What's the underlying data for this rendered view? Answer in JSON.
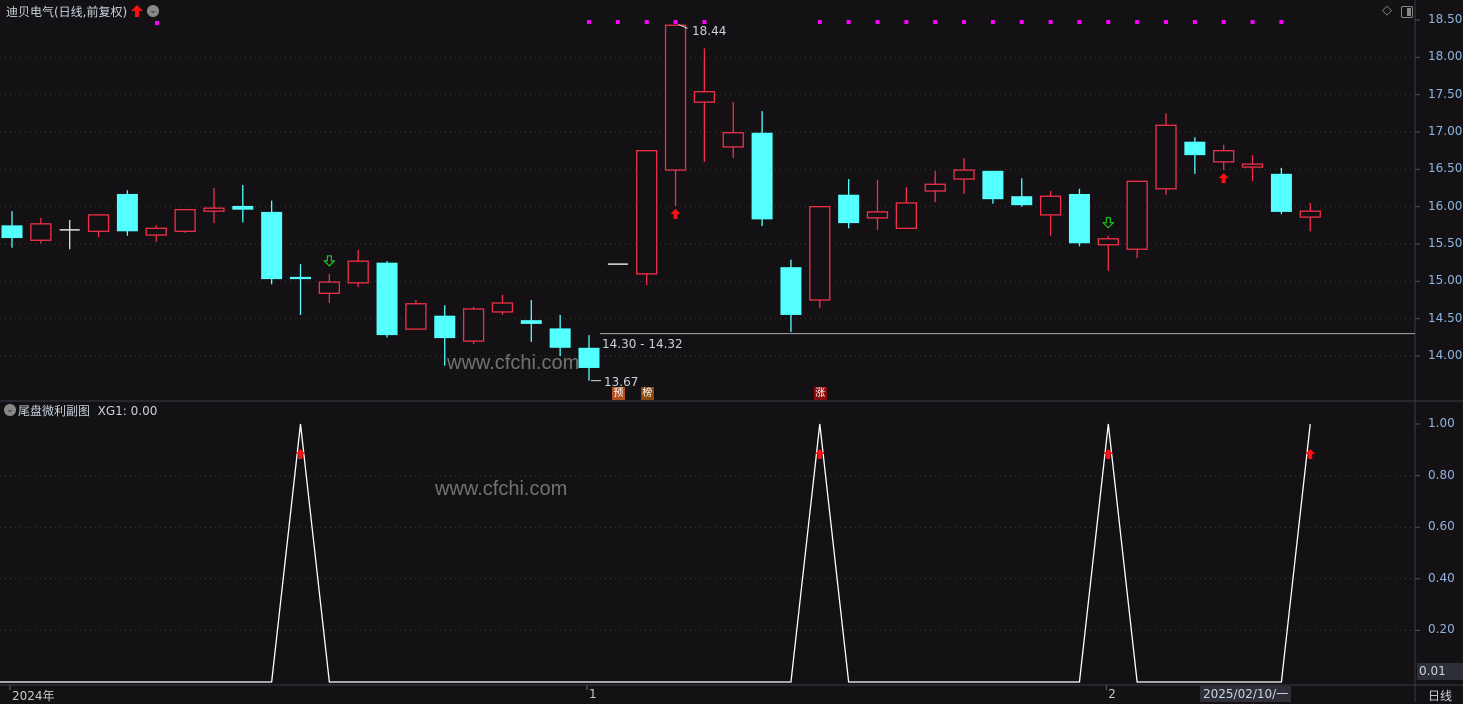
{
  "header": {
    "title": "迪贝电气(日线,前复权)",
    "diamond_icon": "diamond-icon",
    "panel_toggle_icon": "panel-toggle-icon"
  },
  "subpanel": {
    "title": "尾盘微利副图",
    "xg1_label": "XG1: 0.00"
  },
  "watermark": "www.cfchi.com",
  "annotations": {
    "high_label": "18.44",
    "low_label": "13.67",
    "range_label": "14.30 - 14.32",
    "range_price": 14.3,
    "badges": [
      {
        "text": "预",
        "index": 21,
        "color": "#b4501e"
      },
      {
        "text": "榜",
        "index": 22,
        "color": "#8a4a10"
      },
      {
        "text": "涨",
        "index": 28,
        "color": "#8a0c0c"
      }
    ]
  },
  "xaxis": {
    "labels": [
      {
        "text": "2024年",
        "index": 0
      },
      {
        "text": "1",
        "index": 20
      },
      {
        "text": "2",
        "index": 38
      }
    ],
    "cursor_label": "2025/02/10/一",
    "period_label": "日线"
  },
  "colors": {
    "background": "#131113",
    "up": "#f0304a",
    "down": "#54ffff",
    "flat": "#e0e0e0",
    "signal_dot": "#ff00ff",
    "down_arrow": "#22dd22",
    "up_arrow": "#ff1010",
    "grid": "#3a3a3a",
    "axis_text": "#8fb4e0"
  },
  "chart_data": [
    {
      "type": "candlestick",
      "ylim": [
        13.6,
        18.55
      ],
      "yticks": [
        "18.50",
        "18.00",
        "17.50",
        "17.00",
        "16.50",
        "16.00",
        "15.50",
        "15.00",
        "14.50",
        "14.00"
      ],
      "grid": true,
      "ohlc": [
        [
          15.75,
          15.94,
          15.45,
          15.58
        ],
        [
          15.55,
          15.85,
          15.51,
          15.77
        ],
        [
          15.69,
          15.82,
          15.43,
          15.69
        ],
        [
          15.67,
          15.9,
          15.59,
          15.89
        ],
        [
          16.17,
          16.22,
          15.61,
          15.67
        ],
        [
          15.62,
          15.75,
          15.53,
          15.71
        ],
        [
          15.67,
          15.96,
          15.65,
          15.96
        ],
        [
          15.94,
          16.25,
          15.78,
          15.98
        ],
        [
          16.01,
          16.29,
          15.79,
          15.96
        ],
        [
          15.93,
          16.08,
          14.96,
          15.03
        ],
        [
          15.06,
          15.23,
          14.55,
          15.03
        ],
        [
          14.84,
          15.1,
          14.71,
          14.99
        ],
        [
          14.98,
          15.42,
          14.92,
          15.27
        ],
        [
          15.25,
          15.27,
          14.25,
          14.28
        ],
        [
          14.36,
          14.75,
          14.36,
          14.7
        ],
        [
          14.54,
          14.68,
          13.87,
          14.24
        ],
        [
          14.2,
          14.66,
          14.16,
          14.63
        ],
        [
          14.59,
          14.82,
          14.55,
          14.71
        ],
        [
          14.48,
          14.75,
          14.19,
          14.43
        ],
        [
          14.37,
          14.55,
          14.0,
          14.11
        ],
        [
          14.11,
          14.28,
          13.67,
          13.84
        ],
        [
          15.23,
          15.23,
          15.23,
          15.23
        ],
        [
          15.1,
          16.75,
          14.95,
          16.75
        ],
        [
          16.49,
          18.44,
          16.01,
          18.43
        ],
        [
          17.4,
          18.12,
          16.6,
          17.54
        ],
        [
          16.8,
          17.4,
          16.65,
          16.99
        ],
        [
          16.99,
          17.28,
          15.74,
          15.83
        ],
        [
          15.19,
          15.29,
          14.32,
          14.55
        ],
        [
          14.75,
          16.0,
          14.64,
          16.0
        ],
        [
          16.16,
          16.37,
          15.71,
          15.78
        ],
        [
          15.85,
          16.36,
          15.69,
          15.93
        ],
        [
          15.71,
          16.26,
          15.71,
          16.05
        ],
        [
          16.21,
          16.48,
          16.06,
          16.3
        ],
        [
          16.37,
          16.65,
          16.17,
          16.49
        ],
        [
          16.48,
          16.48,
          16.04,
          16.1
        ],
        [
          16.14,
          16.38,
          16.0,
          16.02
        ],
        [
          15.89,
          16.21,
          15.61,
          16.14
        ],
        [
          16.17,
          16.24,
          15.47,
          15.51
        ],
        [
          15.49,
          15.61,
          15.14,
          15.57
        ],
        [
          15.43,
          16.34,
          15.31,
          16.34
        ],
        [
          16.24,
          17.25,
          16.16,
          17.09
        ],
        [
          16.87,
          16.93,
          16.44,
          16.69
        ],
        [
          16.6,
          16.83,
          16.49,
          16.75
        ],
        [
          16.53,
          16.69,
          16.34,
          16.57
        ],
        [
          16.44,
          16.52,
          15.9,
          15.93
        ],
        [
          15.86,
          16.05,
          15.67,
          15.94
        ]
      ],
      "top_signal_dots": [
        5,
        20,
        21,
        22,
        23,
        24,
        28,
        29,
        30,
        31,
        32,
        33,
        34,
        35,
        36,
        37,
        38,
        39,
        40,
        41,
        42,
        43,
        44
      ],
      "down_arrow_signals": [
        11,
        38
      ],
      "up_arrow_signals": [
        23,
        42
      ]
    },
    {
      "type": "line",
      "name": "XG1",
      "ylim": [
        0,
        1.05
      ],
      "yticks": [
        "1.00",
        "0.80",
        "0.60",
        "0.40",
        "0.20"
      ],
      "current_value_label": "0.01",
      "grid": true,
      "values": [
        0,
        0,
        0,
        0,
        0,
        0,
        0,
        0,
        0,
        0,
        1,
        0,
        0,
        0,
        0,
        0,
        0,
        0,
        0,
        0,
        0,
        0,
        0,
        0,
        0,
        0,
        0,
        0,
        1,
        0,
        0,
        0,
        0,
        0,
        0,
        0,
        0,
        0,
        1,
        0,
        0,
        0,
        0,
        0,
        0,
        1
      ],
      "arrow_markers": [
        10,
        28,
        38,
        45
      ]
    }
  ]
}
